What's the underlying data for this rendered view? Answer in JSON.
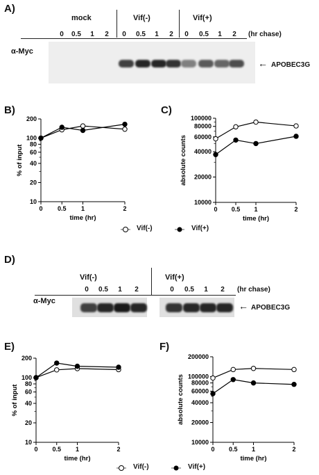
{
  "panels": {
    "A": "A)",
    "B": "B)",
    "C": "C)",
    "D": "D)",
    "E": "E)",
    "F": "F)"
  },
  "blot_a": {
    "groups": [
      "mock",
      "Vif(-)",
      "Vif(+)"
    ],
    "lanes": [
      "0",
      "0.5",
      "1",
      "2",
      "0",
      "0.5",
      "1",
      "2",
      "0",
      "0.5",
      "1",
      "2"
    ],
    "chase_label": "(hr chase)",
    "antibody": "α-Myc",
    "band_label": "APOBEC3G",
    "arrow": "←",
    "band_intensity": [
      0,
      0,
      0,
      0,
      0.75,
      0.85,
      0.85,
      0.8,
      0.5,
      0.65,
      0.6,
      0.7
    ]
  },
  "blot_d": {
    "groups": [
      "Vif(-)",
      "Vif(+)"
    ],
    "lanes": [
      "0",
      "0.5",
      "1",
      "2",
      "0",
      "0.5",
      "1",
      "2"
    ],
    "chase_label": "(hr chase)",
    "antibody": "α-Myc",
    "band_label": "APOBEC3G",
    "arrow": "←",
    "band_intensity": [
      0.75,
      0.85,
      0.9,
      0.85,
      0.8,
      0.85,
      0.85,
      0.85
    ]
  },
  "legend": {
    "open_label": "Vif(-)",
    "filled_label": "Vif(+)"
  },
  "chart_data": [
    {
      "id": "B",
      "type": "line",
      "scale": "log",
      "ylabel": "% of input",
      "xlabel": "time (hr)",
      "x": [
        0,
        0.5,
        1,
        2
      ],
      "xticks": [
        "0",
        "0.5",
        "1",
        "2"
      ],
      "ylim": [
        10,
        200
      ],
      "yticks": [
        10,
        20,
        40,
        60,
        80,
        100,
        200
      ],
      "ytick_labels": [
        "10",
        "20",
        "40",
        "60",
        "80",
        "100",
        "200"
      ],
      "series": [
        {
          "marker": "open",
          "values": [
            100,
            135,
            155,
            138
          ]
        },
        {
          "marker": "filled",
          "values": [
            100,
            148,
            132,
            165
          ]
        }
      ]
    },
    {
      "id": "C",
      "type": "line",
      "scale": "log",
      "ylabel": "absolute counts",
      "xlabel": "time (hr)",
      "x": [
        0,
        0.5,
        1,
        2
      ],
      "xticks": [
        "0",
        "0.5",
        "1",
        "2"
      ],
      "ylim": [
        10000,
        100000
      ],
      "yticks": [
        10000,
        20000,
        40000,
        60000,
        80000,
        100000
      ],
      "ytick_labels": [
        "10000",
        "20000",
        "40000",
        "60000",
        "80000",
        "100000"
      ],
      "series": [
        {
          "marker": "open",
          "values": [
            57000,
            79000,
            90000,
            81000
          ]
        },
        {
          "marker": "filled",
          "values": [
            37000,
            55000,
            50000,
            61000
          ]
        }
      ]
    },
    {
      "id": "E",
      "type": "line",
      "scale": "log",
      "ylabel": "% of input",
      "xlabel": "time (hr)",
      "x": [
        0,
        0.5,
        1,
        2
      ],
      "xticks": [
        "0",
        "0.5",
        "1",
        "2"
      ],
      "ylim": [
        10,
        200
      ],
      "yticks": [
        10,
        20,
        40,
        60,
        80,
        100,
        200
      ],
      "ytick_labels": [
        "10",
        "20",
        "40",
        "60",
        "80",
        "100",
        "200"
      ],
      "series": [
        {
          "marker": "open",
          "values": [
            100,
            132,
            138,
            133
          ]
        },
        {
          "marker": "filled",
          "values": [
            100,
            168,
            150,
            145
          ]
        }
      ]
    },
    {
      "id": "F",
      "type": "line",
      "scale": "log",
      "ylabel": "absolute counts",
      "xlabel": "time (hr)",
      "x": [
        0,
        0.5,
        1,
        2
      ],
      "xticks": [
        "0",
        "0.5",
        "1",
        "2"
      ],
      "ylim": [
        10000,
        200000
      ],
      "yticks": [
        10000,
        20000,
        40000,
        60000,
        80000,
        100000,
        200000
      ],
      "ytick_labels": [
        "10000",
        "20000",
        "40000",
        "60000",
        "80000",
        "100000",
        "200000"
      ],
      "series": [
        {
          "marker": "open",
          "values": [
            95000,
            128000,
            133000,
            128000
          ]
        },
        {
          "marker": "filled",
          "values": [
            55000,
            90000,
            80000,
            76000
          ]
        }
      ]
    }
  ]
}
